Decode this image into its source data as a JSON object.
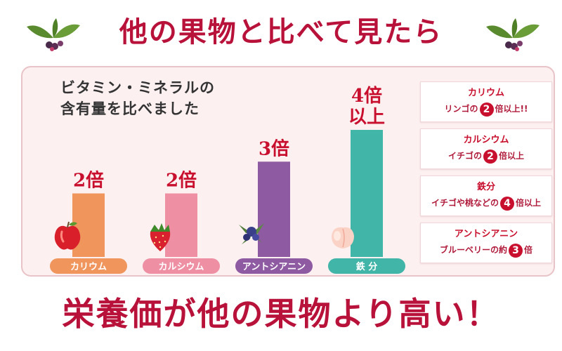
{
  "header": {
    "title": "他の果物と比べて見たら"
  },
  "chart_heading": {
    "line1": "ビタミン・ミネラルの",
    "line2": "含有量を比べました"
  },
  "colors": {
    "title_red": "#b8123a",
    "potassium": "#f0955c",
    "calcium": "#ee8fa4",
    "anthocyanin": "#8e5aa1",
    "iron": "#40b5a8"
  },
  "chart_data": {
    "type": "bar",
    "title": "",
    "xlabel": "",
    "ylabel": "",
    "categories": [
      "カリウム",
      "カルシウム",
      "アントシアニン",
      "鉄 分"
    ],
    "values": [
      2,
      2,
      3,
      4
    ],
    "value_labels": [
      "2倍",
      "2倍",
      "3倍",
      "4倍以上"
    ],
    "ylim": [
      0,
      4.2
    ],
    "grid": false,
    "legend": "none",
    "bar_colors": [
      "#f0955c",
      "#ee8fa4",
      "#8e5aa1",
      "#40b5a8"
    ],
    "fruit_icons": [
      "apple-icon",
      "strawberry-icon",
      "blueberry-icon",
      "peach-icon"
    ]
  },
  "info_boxes": [
    {
      "title": "カリウム",
      "before": "リンゴの",
      "num": "2",
      "after": "倍以上!!"
    },
    {
      "title": "カルシウム",
      "before": "イチゴの",
      "num": "2",
      "after": "倍以上"
    },
    {
      "title": "鉄分",
      "before": "イチゴや桃などの",
      "num": "4",
      "after": "倍以上"
    },
    {
      "title": "アントシアニン",
      "before": "ブルーベリーの約",
      "num": "3",
      "after": "倍"
    }
  ],
  "footer": {
    "title": "栄養価が他の果物より高い！"
  }
}
